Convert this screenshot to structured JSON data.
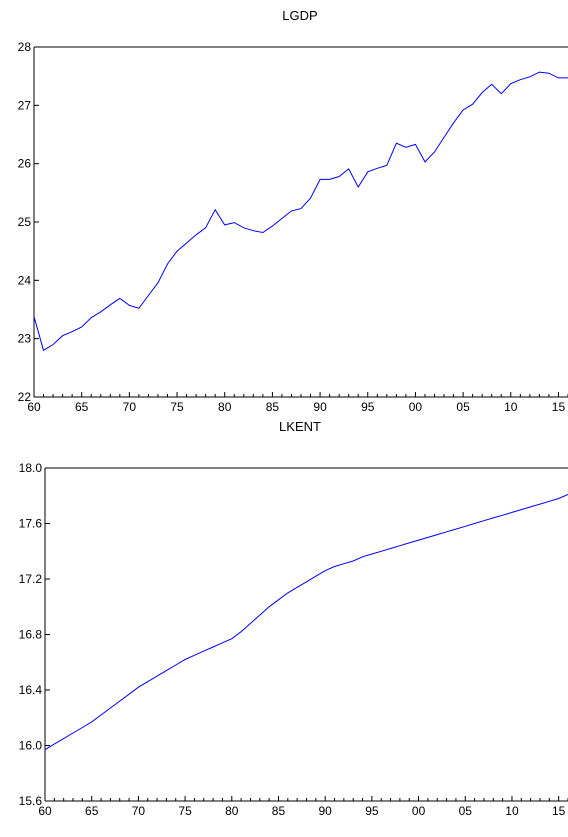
{
  "chart_data": [
    {
      "type": "line",
      "title": "LGDP",
      "xlabel": "",
      "ylabel": "",
      "xlim": [
        1960,
        2016
      ],
      "ylim": [
        22,
        28
      ],
      "y_ticks": [
        22,
        23,
        24,
        25,
        26,
        27,
        28
      ],
      "y_tick_labels": [
        "22",
        "23",
        "24",
        "25",
        "26",
        "27",
        "28"
      ],
      "x_ticks": [
        1960,
        1965,
        1970,
        1975,
        1980,
        1985,
        1990,
        1995,
        2000,
        2005,
        2010,
        2015
      ],
      "x_tick_labels": [
        "60",
        "65",
        "70",
        "75",
        "80",
        "85",
        "90",
        "95",
        "00",
        "05",
        "10",
        "15"
      ],
      "grid": false,
      "line_color": "#0000ff",
      "series": [
        {
          "x": [
            1960,
            1961,
            1962,
            1963,
            1964,
            1965,
            1966,
            1967,
            1968,
            1969,
            1970,
            1971,
            1972,
            1973,
            1974,
            1975,
            1976,
            1977,
            1978,
            1979,
            1980,
            1981,
            1982,
            1983,
            1984,
            1985,
            1986,
            1987,
            1988,
            1989,
            1990,
            1991,
            1992,
            1993,
            1994,
            1995,
            1996,
            1997,
            1998,
            1999,
            2000,
            2001,
            2002,
            2003,
            2004,
            2005,
            2006,
            2007,
            2008,
            2009,
            2010,
            2011,
            2012,
            2013,
            2014,
            2015,
            2016
          ],
          "values": [
            23.38,
            22.8,
            22.9,
            23.05,
            23.12,
            23.2,
            23.36,
            23.46,
            23.58,
            23.69,
            23.57,
            23.52,
            23.74,
            23.96,
            24.28,
            24.5,
            24.64,
            24.78,
            24.9,
            25.21,
            24.95,
            24.99,
            24.9,
            24.85,
            24.82,
            24.93,
            25.06,
            25.19,
            25.23,
            25.41,
            25.73,
            25.73,
            25.78,
            25.91,
            25.6,
            25.86,
            25.92,
            25.97,
            26.35,
            26.28,
            26.33,
            26.03,
            26.2,
            26.45,
            26.7,
            26.92,
            27.02,
            27.22,
            27.36,
            27.2,
            27.37,
            27.44,
            27.49,
            27.57,
            27.55,
            27.47,
            27.47
          ]
        }
      ]
    },
    {
      "type": "line",
      "title": "LKENT",
      "xlabel": "",
      "ylabel": "",
      "xlim": [
        1960,
        2016
      ],
      "ylim": [
        15.6,
        18.0
      ],
      "y_ticks": [
        15.6,
        16.0,
        16.4,
        16.8,
        17.2,
        17.6,
        18.0
      ],
      "y_tick_labels": [
        "15.6",
        "16.0",
        "16.4",
        "16.8",
        "17.2",
        "17.6",
        "18.0"
      ],
      "x_ticks": [
        1960,
        1965,
        1970,
        1975,
        1980,
        1985,
        1990,
        1995,
        2000,
        2005,
        2010,
        2015
      ],
      "x_tick_labels": [
        "60",
        "65",
        "70",
        "75",
        "80",
        "85",
        "90",
        "95",
        "00",
        "05",
        "10",
        "15"
      ],
      "grid": false,
      "line_color": "#0000ff",
      "series": [
        {
          "x": [
            1960,
            1961,
            1962,
            1963,
            1964,
            1965,
            1966,
            1967,
            1968,
            1969,
            1970,
            1971,
            1972,
            1973,
            1974,
            1975,
            1976,
            1977,
            1978,
            1979,
            1980,
            1981,
            1982,
            1983,
            1984,
            1985,
            1986,
            1987,
            1988,
            1989,
            1990,
            1991,
            1992,
            1993,
            1994,
            1995,
            1996,
            1997,
            1998,
            1999,
            2000,
            2001,
            2002,
            2003,
            2004,
            2005,
            2006,
            2007,
            2008,
            2009,
            2010,
            2011,
            2012,
            2013,
            2014,
            2015,
            2016
          ],
          "values": [
            15.97,
            16.01,
            16.05,
            16.09,
            16.13,
            16.17,
            16.22,
            16.27,
            16.32,
            16.37,
            16.42,
            16.46,
            16.5,
            16.54,
            16.58,
            16.62,
            16.65,
            16.68,
            16.71,
            16.74,
            16.77,
            16.82,
            16.88,
            16.94,
            17.0,
            17.05,
            17.1,
            17.14,
            17.18,
            17.22,
            17.26,
            17.29,
            17.31,
            17.33,
            17.36,
            17.38,
            17.4,
            17.42,
            17.44,
            17.46,
            17.48,
            17.5,
            17.52,
            17.54,
            17.56,
            17.58,
            17.6,
            17.62,
            17.64,
            17.66,
            17.68,
            17.7,
            17.72,
            17.74,
            17.76,
            17.78,
            17.81
          ]
        }
      ]
    }
  ]
}
